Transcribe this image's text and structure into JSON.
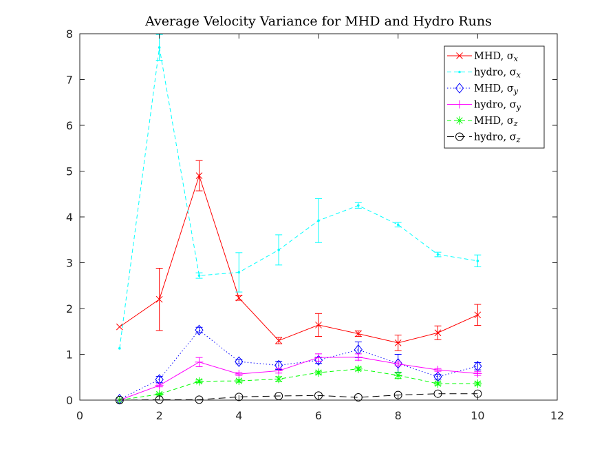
{
  "chart_data": {
    "type": "line",
    "title": "Average Velocity Variance for MHD and Hydro Runs",
    "xlabel": "",
    "ylabel": "",
    "xlim": [
      0,
      12
    ],
    "ylim": [
      0,
      8
    ],
    "xticks": [
      "0",
      "2",
      "4",
      "6",
      "8",
      "10",
      "12"
    ],
    "yticks": [
      "0",
      "1",
      "2",
      "3",
      "4",
      "5",
      "6",
      "7",
      "8"
    ],
    "grid": false,
    "legend_position": "top-right",
    "x": [
      1,
      2,
      3,
      4,
      5,
      6,
      7,
      8,
      9,
      10
    ],
    "series": [
      {
        "name": "MHD, σx",
        "legend_main": "MHD, σ",
        "legend_sub": "x",
        "color": "#ff0000",
        "dash": "solid",
        "marker": "x",
        "values": [
          1.6,
          2.2,
          4.9,
          2.23,
          1.3,
          1.64,
          1.45,
          1.25,
          1.47,
          1.86
        ],
        "errors": [
          0,
          0.68,
          0.33,
          0.05,
          0.07,
          0.25,
          0.06,
          0.17,
          0.15,
          0.23
        ]
      },
      {
        "name": "hydro, σx",
        "legend_main": "hydro, σ",
        "legend_sub": "x",
        "color": "#00ffff",
        "dash": "dashed",
        "marker": "point",
        "values": [
          1.13,
          7.7,
          2.72,
          2.79,
          3.28,
          3.92,
          4.25,
          3.83,
          3.18,
          3.04
        ],
        "errors": [
          0,
          0.28,
          0.06,
          0.43,
          0.33,
          0.48,
          0.06,
          0.05,
          0.05,
          0.13
        ]
      },
      {
        "name": "MHD, σy",
        "legend_main": "MHD, σ",
        "legend_sub": "y",
        "color": "#0000ff",
        "dash": "dotted",
        "marker": "diamond",
        "values": [
          0.02,
          0.45,
          1.53,
          0.84,
          0.76,
          0.87,
          1.1,
          0.8,
          0.51,
          0.74
        ],
        "errors": [
          0,
          0.07,
          0.06,
          0.05,
          0.09,
          0.07,
          0.17,
          0.2,
          0.05,
          0.08
        ]
      },
      {
        "name": "hydro, σy",
        "legend_main": "hydro, σ",
        "legend_sub": "y",
        "color": "#ff00ff",
        "dash": "solid",
        "marker": "plus",
        "values": [
          0.0,
          0.32,
          0.83,
          0.57,
          0.64,
          0.93,
          0.94,
          0.79,
          0.66,
          0.58
        ],
        "errors": [
          0,
          0.03,
          0.1,
          0.03,
          0.05,
          0.08,
          0.07,
          0.04,
          0.03,
          0.04
        ]
      },
      {
        "name": "MHD, σz",
        "legend_main": "MHD, σ",
        "legend_sub": "z",
        "color": "#00ff00",
        "dash": "dashed",
        "marker": "star",
        "values": [
          0.0,
          0.13,
          0.41,
          0.42,
          0.46,
          0.6,
          0.68,
          0.54,
          0.36,
          0.36
        ],
        "errors": [
          0,
          0.02,
          0.03,
          0.03,
          0.05,
          0.03,
          0.04,
          0.07,
          0.03,
          0.03
        ]
      },
      {
        "name": "hydro, σz",
        "legend_main": "hydro, σ",
        "legend_sub": "z",
        "color": "#000000",
        "dash": "longdash",
        "marker": "circle",
        "values": [
          0.0,
          0.01,
          0.01,
          0.07,
          0.09,
          0.1,
          0.06,
          0.11,
          0.14,
          0.14
        ],
        "errors": [
          0,
          0,
          0,
          0,
          0,
          0,
          0,
          0,
          0,
          0
        ]
      }
    ]
  }
}
